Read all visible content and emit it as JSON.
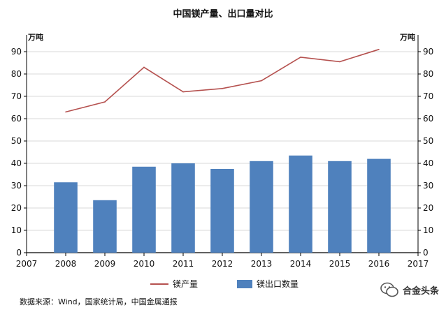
{
  "title": "中国镁产量、出口量对比",
  "unit_left": "万吨",
  "unit_right": "万吨",
  "source": "数据来源：Wind，国家统计局，中国金属通报",
  "watermark": "合金头条",
  "colors": {
    "bar": "#4f81bd",
    "line": "#b5514f",
    "axis": "#000000",
    "grid": "#d9d9d9"
  },
  "watermark_icon": "wechat-icon",
  "chart_data": {
    "type": "bar+line",
    "title": "中国镁产量、出口量对比",
    "x_ticks": [
      "2007",
      "2008",
      "2009",
      "2010",
      "2011",
      "2012",
      "2013",
      "2014",
      "2015",
      "2016",
      "2017"
    ],
    "categories": [
      "2008",
      "2009",
      "2010",
      "2011",
      "2012",
      "2013",
      "2014",
      "2015",
      "2016"
    ],
    "y_ticks": [
      0,
      10,
      20,
      30,
      40,
      50,
      60,
      70,
      80,
      90
    ],
    "ylim": [
      0,
      95
    ],
    "grid": "horizontal",
    "legend_position": "bottom",
    "series": [
      {
        "name": "镁产量",
        "type": "line",
        "values": [
          63,
          67.5,
          83,
          72,
          73.5,
          77,
          87.5,
          85.5,
          91
        ]
      },
      {
        "name": "镁出口数量",
        "type": "bar",
        "values": [
          31.5,
          23.5,
          38.5,
          40,
          37.5,
          41,
          43.5,
          41,
          42
        ]
      }
    ]
  }
}
